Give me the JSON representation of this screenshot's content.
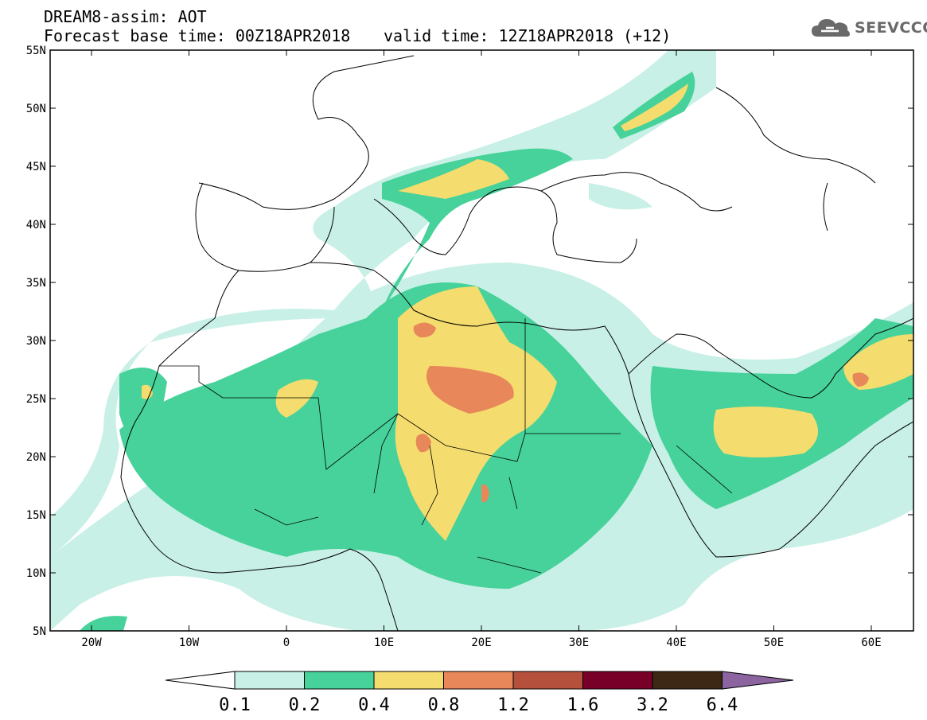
{
  "header": {
    "title": "DREAM8-assim: AOT",
    "base_time": "Forecast base time: 00Z18APR2018",
    "valid_time": "valid time: 12Z18APR2018 (+12)"
  },
  "logo": {
    "text": "SEEVCCC",
    "icon": "cloud-icon"
  },
  "map": {
    "lon_ticks": [
      "20W",
      "10W",
      "0",
      "10E",
      "20E",
      "30E",
      "40E",
      "50E",
      "60E"
    ],
    "lat_ticks": [
      "55N",
      "50N",
      "45N",
      "40N",
      "35N",
      "30N",
      "25N",
      "20N",
      "15N",
      "10N",
      "5N"
    ]
  },
  "colorbar": {
    "levels": [
      "0.1",
      "0.2",
      "0.4",
      "0.8",
      "1.2",
      "1.6",
      "3.2",
      "6.4"
    ],
    "colors": [
      "#c8f0e6",
      "#46d29a",
      "#f5dc6e",
      "#e8875a",
      "#b4503c",
      "#780028",
      "#3c2814",
      "#8c64a0"
    ],
    "under_color": "#ffffff",
    "over_color": "#8c64a0"
  }
}
